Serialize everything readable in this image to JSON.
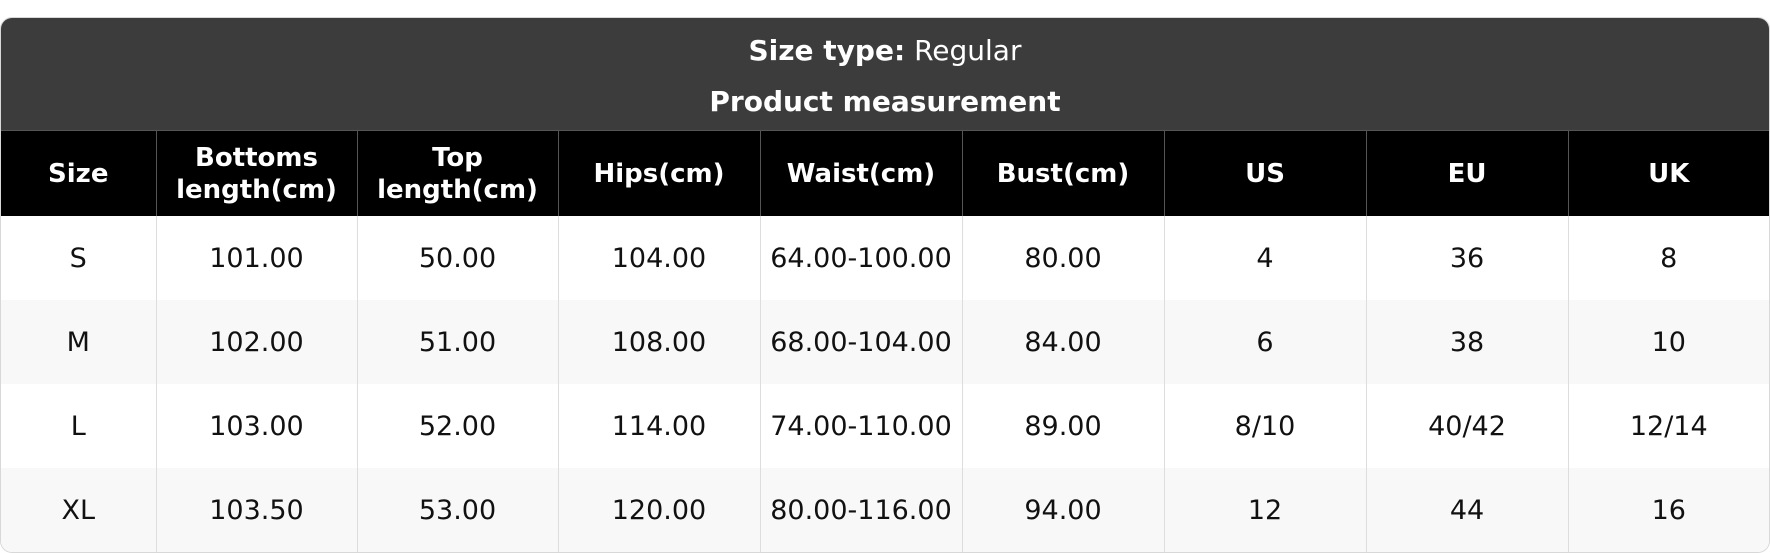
{
  "size_type": {
    "label": "Size type:",
    "value": "Regular"
  },
  "section_title": "Product measurement",
  "columns": [
    "Size",
    "Bottoms length(cm)",
    "Top length(cm)",
    "Hips(cm)",
    "Waist(cm)",
    "Bust(cm)",
    "US",
    "EU",
    "UK"
  ],
  "rows": [
    [
      "S",
      "101.00",
      "50.00",
      "104.00",
      "64.00-100.00",
      "80.00",
      "4",
      "36",
      "8"
    ],
    [
      "M",
      "102.00",
      "51.00",
      "108.00",
      "68.00-104.00",
      "84.00",
      "6",
      "38",
      "10"
    ],
    [
      "L",
      "103.00",
      "52.00",
      "114.00",
      "74.00-110.00",
      "89.00",
      "8/10",
      "40/42",
      "12/14"
    ],
    [
      "XL",
      "103.50",
      "53.00",
      "120.00",
      "80.00-116.00",
      "94.00",
      "12",
      "44",
      "16"
    ]
  ],
  "colors": {
    "banner": "#3c3c3c",
    "header": "#000000",
    "row_alt": "#f8f8f8"
  }
}
